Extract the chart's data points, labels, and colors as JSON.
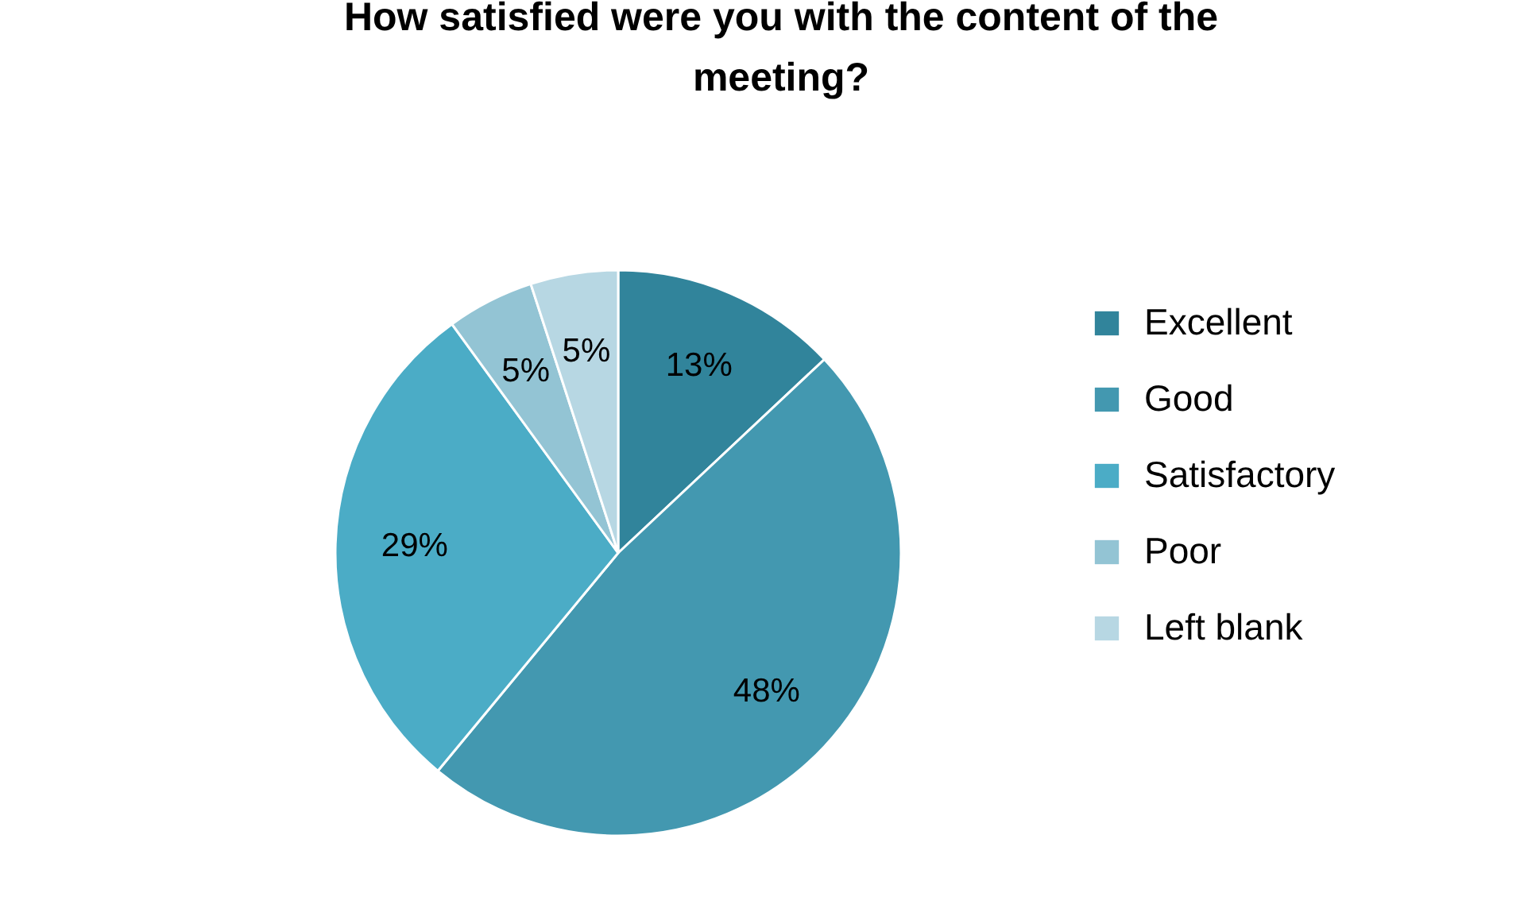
{
  "chart_data": {
    "type": "pie",
    "title": "How satisfied were you with the content of the meeting?",
    "categories": [
      "Excellent",
      "Good",
      "Satisfactory",
      "Poor",
      "Left blank"
    ],
    "values": [
      13,
      48,
      29,
      5,
      5
    ],
    "value_labels": [
      "13%",
      "48%",
      "29%",
      "5%",
      "5%"
    ],
    "colors": [
      "#31849b",
      "#4398b0",
      "#4bacc6",
      "#93c4d4",
      "#b7d7e3"
    ],
    "legend": "right"
  }
}
